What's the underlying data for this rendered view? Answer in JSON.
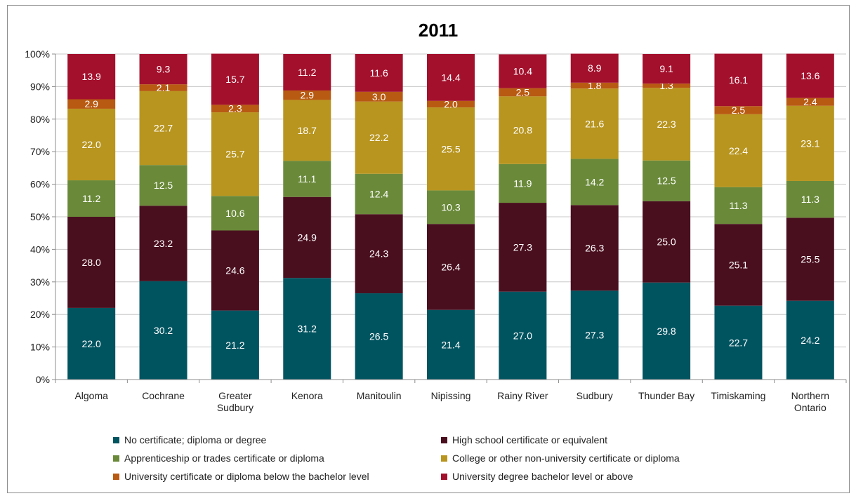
{
  "chart_data": {
    "type": "bar",
    "stacked": true,
    "title": "2011",
    "categories": [
      [
        "Algoma"
      ],
      [
        "Cochrane"
      ],
      [
        "Greater",
        "Sudbury"
      ],
      [
        "Kenora"
      ],
      [
        "Manitoulin"
      ],
      [
        "Nipissing"
      ],
      [
        "Rainy River"
      ],
      [
        "Sudbury"
      ],
      [
        "Thunder Bay"
      ],
      [
        "Timiskaming"
      ],
      [
        "Northern",
        "Ontario"
      ]
    ],
    "ylim": [
      0,
      100
    ],
    "yticks": [
      "0%",
      "10%",
      "20%",
      "30%",
      "40%",
      "50%",
      "60%",
      "70%",
      "80%",
      "90%",
      "100%"
    ],
    "grid": true,
    "legend_position": "bottom",
    "series": [
      {
        "name": "No certificate; diploma or degree",
        "color": "#005460",
        "values": [
          22.0,
          30.2,
          21.2,
          31.2,
          26.5,
          21.4,
          27.0,
          27.3,
          29.8,
          22.7,
          24.2
        ],
        "labels": [
          "22.0",
          "30.2",
          "21.2",
          "31.2",
          "26.5",
          "21.4",
          "27.0",
          "27.3",
          "29.8",
          "22.7",
          "24.2"
        ]
      },
      {
        "name": "High school certificate or equivalent",
        "color": "#4a0f1f",
        "values": [
          28.0,
          23.2,
          24.6,
          24.9,
          24.3,
          26.4,
          27.3,
          26.3,
          25.0,
          25.1,
          25.5
        ],
        "labels": [
          "28.0",
          "23.2",
          "24.6",
          "24.9",
          "24.3",
          "26.4",
          "27.3",
          "26.3",
          "25.0",
          "25.1",
          "25.5"
        ]
      },
      {
        "name": "Apprenticeship or trades certificate or diploma",
        "color": "#6a8a3a",
        "values": [
          11.2,
          12.5,
          10.6,
          11.1,
          12.4,
          10.3,
          11.9,
          14.2,
          12.5,
          11.3,
          11.3
        ],
        "labels": [
          "11.2",
          "12.5",
          "10.6",
          "11.1",
          "12.4",
          "10.3",
          "11.9",
          "14.2",
          "12.5",
          "11.3",
          "11.3"
        ]
      },
      {
        "name": "College or other non-university certificate or diploma",
        "color": "#b8951f",
        "values": [
          22.0,
          22.7,
          25.7,
          18.7,
          22.2,
          25.5,
          20.8,
          21.6,
          22.3,
          22.4,
          23.1
        ],
        "labels": [
          "22.0",
          "22.7",
          "25.7",
          "18.7",
          "22.2",
          "25.5",
          "20.8",
          "21.6",
          "22.3",
          "22.4",
          "23.1"
        ]
      },
      {
        "name": "University certificate or diploma below the bachelor level",
        "color": "#b85a12",
        "values": [
          2.9,
          2.1,
          2.3,
          2.9,
          3.0,
          2.0,
          2.5,
          1.8,
          1.3,
          2.5,
          2.4
        ],
        "labels": [
          "2.9",
          "2.1",
          "2.3",
          "2.9",
          "3.0",
          "2.0",
          "2.5",
          "1.8",
          "1.3",
          "2.5",
          "2.4"
        ]
      },
      {
        "name": "University degree bachelor level or above",
        "color": "#a3102c",
        "values": [
          13.9,
          9.3,
          15.7,
          11.2,
          11.6,
          14.4,
          10.4,
          8.9,
          9.1,
          16.1,
          13.6
        ],
        "labels": [
          "13.9",
          "9.3",
          "15.7",
          "11.2",
          "11.6",
          "14.4",
          "10.4",
          "8.9",
          "9.1",
          "16.1",
          "13.6"
        ]
      }
    ]
  }
}
